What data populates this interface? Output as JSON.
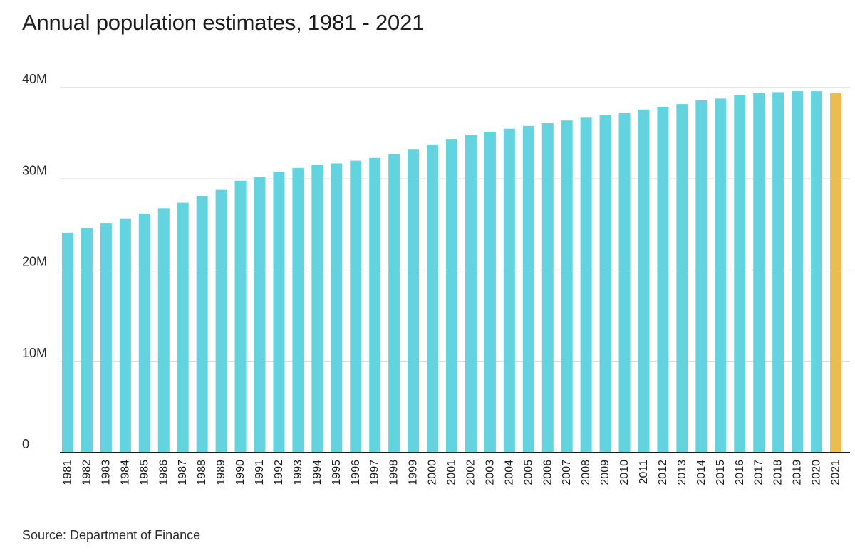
{
  "title": "Annual population estimates, 1981 - 2021",
  "source": "Source: Department of Finance",
  "colors": {
    "bar": "#62d3df",
    "highlight_bar": "#eabd4f",
    "grid": "#cccccc",
    "baseline": "#1a1a1a"
  },
  "chart_data": {
    "type": "bar",
    "title": "Annual population estimates, 1981 - 2021",
    "xlabel": "",
    "ylabel": "",
    "ylim": [
      0,
      40000000
    ],
    "yticks": [
      0,
      10000000,
      20000000,
      30000000,
      40000000
    ],
    "ytick_labels": [
      "0",
      "10M",
      "20M",
      "30M",
      "40M"
    ],
    "grid": "horizontal",
    "highlight_category": "2021",
    "categories": [
      "1981",
      "1982",
      "1983",
      "1984",
      "1985",
      "1986",
      "1987",
      "1988",
      "1989",
      "1990",
      "1991",
      "1992",
      "1993",
      "1994",
      "1995",
      "1996",
      "1997",
      "1998",
      "1999",
      "2000",
      "2001",
      "2002",
      "2003",
      "2004",
      "2005",
      "2006",
      "2007",
      "2008",
      "2009",
      "2010",
      "2011",
      "2012",
      "2013",
      "2014",
      "2015",
      "2016",
      "2017",
      "2018",
      "2019",
      "2020",
      "2021"
    ],
    "values": [
      24100000,
      24600000,
      25100000,
      25600000,
      26200000,
      26800000,
      27400000,
      28100000,
      28800000,
      29800000,
      30200000,
      30800000,
      31200000,
      31500000,
      31700000,
      32000000,
      32300000,
      32700000,
      33200000,
      33700000,
      34300000,
      34800000,
      35100000,
      35500000,
      35800000,
      36100000,
      36400000,
      36700000,
      37000000,
      37200000,
      37600000,
      37900000,
      38200000,
      38600000,
      38800000,
      39200000,
      39400000,
      39500000,
      39600000,
      39600000,
      39400000
    ]
  }
}
